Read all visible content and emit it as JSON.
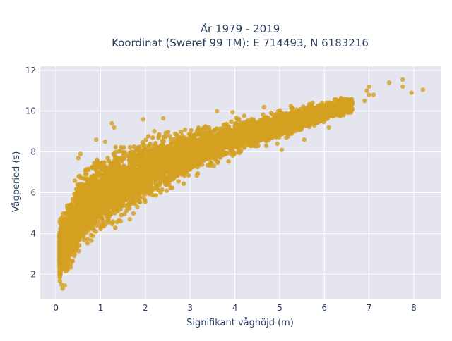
{
  "chart_data": {
    "type": "scatter",
    "title_lines": [
      "År 1979 - 2019",
      "Koordinat (Sweref 99 TM): E 714493, N 6183216"
    ],
    "xlabel": "Signifikant våghöjd (m)",
    "ylabel": "Vågperiod (s)",
    "xlim": [
      -0.35,
      8.6
    ],
    "ylim": [
      0.8,
      12.2
    ],
    "x_ticks": [
      0,
      1,
      2,
      3,
      4,
      5,
      6,
      7,
      8
    ],
    "y_ticks": [
      2,
      4,
      6,
      8,
      10,
      12
    ],
    "x_tick_labels": [
      "0",
      "1",
      "2",
      "3",
      "4",
      "5",
      "6",
      "7",
      "8"
    ],
    "y_tick_labels": [
      "2",
      "4",
      "6",
      "8",
      "10",
      "12"
    ],
    "grid": true,
    "legend": "none",
    "marker_color": "#D4A020",
    "background_color": "#E5E5EF",
    "series": [
      {
        "approximate_density_band": [
          {
            "x": 0.1,
            "y_low": 1.4,
            "y_high": 4.8
          },
          {
            "x": 0.3,
            "y_low": 1.8,
            "y_high": 6.0
          },
          {
            "x": 0.6,
            "y_low": 2.8,
            "y_high": 7.6
          },
          {
            "x": 1.0,
            "y_low": 3.6,
            "y_high": 8.2
          },
          {
            "x": 1.5,
            "y_low": 4.4,
            "y_high": 8.7
          },
          {
            "x": 2.0,
            "y_low": 5.2,
            "y_high": 9.0
          },
          {
            "x": 2.5,
            "y_low": 5.9,
            "y_high": 9.2
          },
          {
            "x": 3.0,
            "y_low": 6.5,
            "y_high": 9.4
          },
          {
            "x": 3.5,
            "y_low": 7.1,
            "y_high": 9.6
          },
          {
            "x": 4.0,
            "y_low": 7.6,
            "y_high": 9.8
          },
          {
            "x": 4.5,
            "y_low": 8.1,
            "y_high": 10.0
          },
          {
            "x": 5.0,
            "y_low": 8.5,
            "y_high": 10.2
          },
          {
            "x": 5.5,
            "y_low": 8.9,
            "y_high": 10.4
          },
          {
            "x": 6.0,
            "y_low": 9.3,
            "y_high": 10.6
          },
          {
            "x": 6.5,
            "y_low": 9.7,
            "y_high": 10.8
          }
        ],
        "points": [
          [
            7.0,
            10.8
          ],
          [
            7.1,
            10.8
          ],
          [
            6.9,
            10.5
          ],
          [
            6.95,
            11.0
          ],
          [
            7.0,
            11.2
          ],
          [
            7.45,
            11.4
          ],
          [
            7.75,
            11.55
          ],
          [
            7.75,
            11.2
          ],
          [
            7.95,
            10.9
          ],
          [
            8.2,
            11.05
          ],
          [
            6.1,
            9.2
          ],
          [
            5.55,
            8.6
          ],
          [
            5.95,
            10.4
          ],
          [
            5.6,
            10.0
          ],
          [
            5.8,
            10.1
          ],
          [
            6.6,
            10.2
          ],
          [
            6.3,
            10.5
          ],
          [
            6.45,
            10.6
          ],
          [
            4.65,
            10.2
          ],
          [
            5.25,
            10.25
          ],
          [
            3.6,
            10.0
          ],
          [
            3.95,
            9.95
          ],
          [
            2.4,
            9.65
          ],
          [
            1.95,
            9.6
          ],
          [
            1.25,
            9.4
          ],
          [
            1.3,
            9.2
          ],
          [
            1.1,
            8.5
          ],
          [
            0.9,
            8.6
          ],
          [
            0.55,
            7.9
          ],
          [
            0.5,
            7.7
          ],
          [
            0.1,
            4.7
          ],
          [
            0.15,
            1.3
          ],
          [
            0.12,
            1.5
          ],
          [
            0.2,
            1.45
          ],
          [
            0.1,
            2.1
          ],
          [
            2.45,
            6.7
          ],
          [
            2.5,
            6.55
          ],
          [
            2.45,
            6.4
          ],
          [
            2.55,
            8.3
          ],
          [
            1.45,
            4.6
          ],
          [
            1.65,
            4.7
          ],
          [
            5.05,
            8.1
          ],
          [
            4.95,
            8.4
          ],
          [
            5.15,
            8.7
          ],
          [
            4.7,
            8.3
          ],
          [
            4.4,
            8.5
          ],
          [
            4.2,
            8.2
          ],
          [
            4.1,
            8.1
          ],
          [
            3.9,
            8.3
          ],
          [
            3.75,
            8.2
          ],
          [
            5.2,
            8.9
          ],
          [
            5.5,
            9.5
          ],
          [
            4.95,
            9.3
          ],
          [
            5.75,
            9.9
          ],
          [
            5.8,
            9.6
          ]
        ]
      }
    ]
  }
}
